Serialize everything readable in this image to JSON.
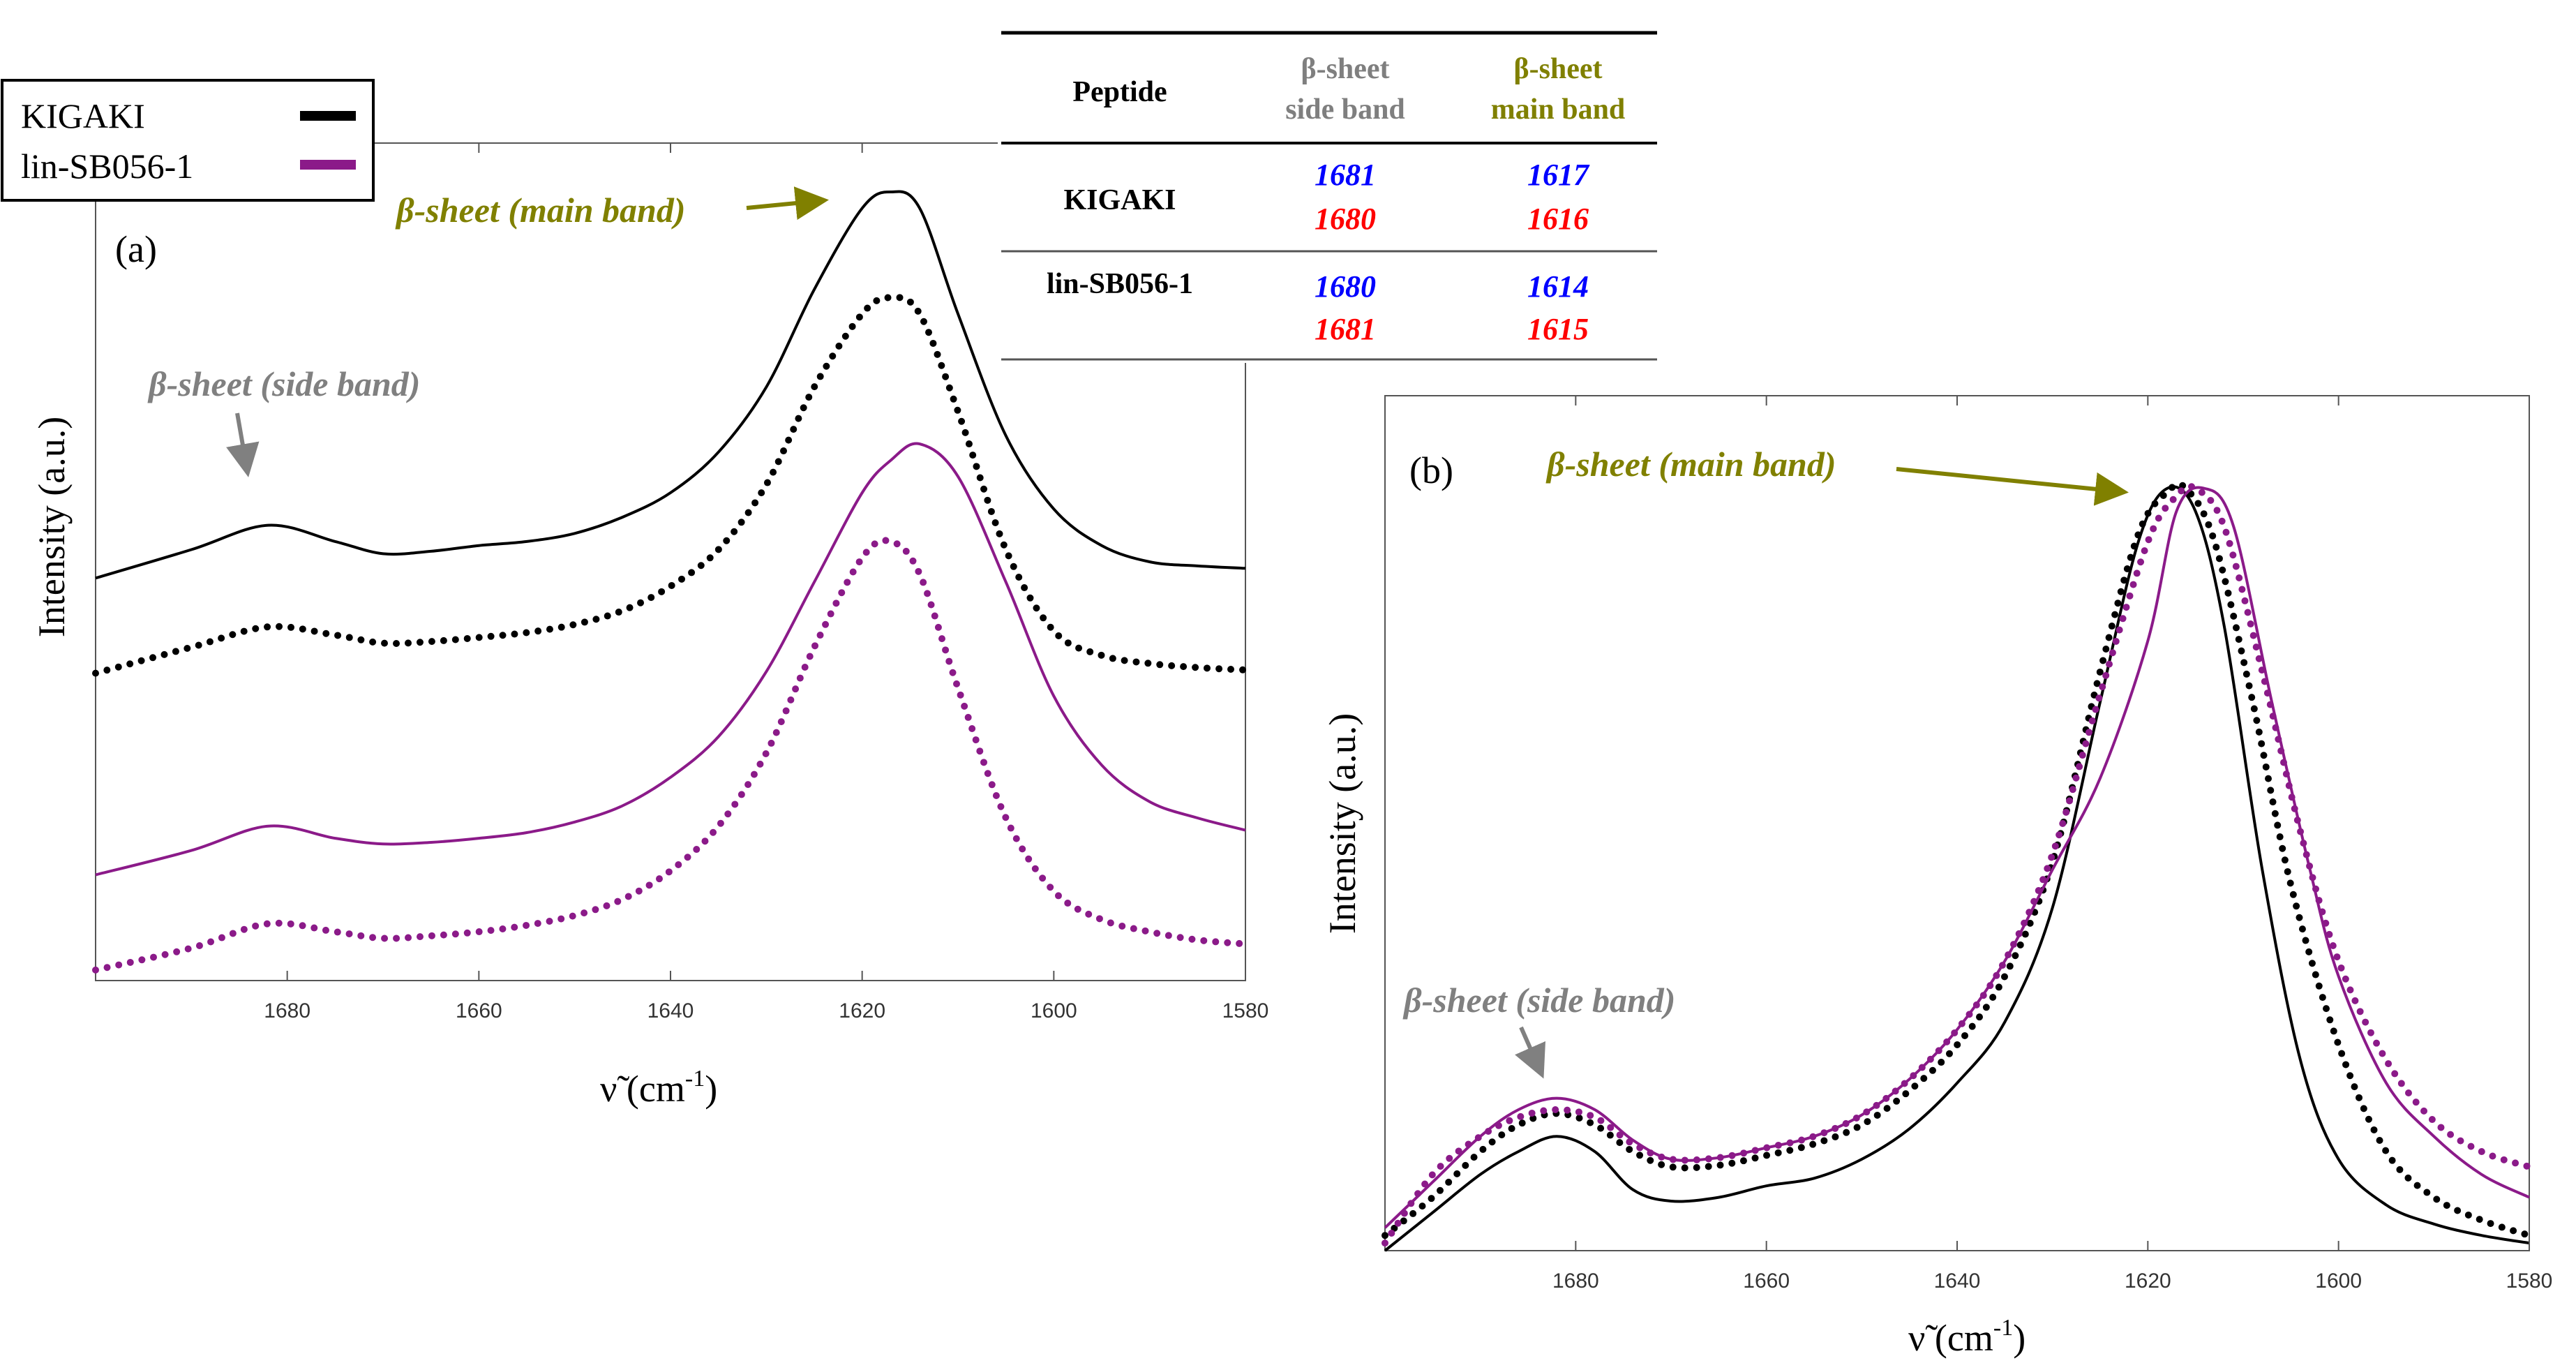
{
  "legend": {
    "items": [
      {
        "label": "KIGAKI",
        "color": "#000000"
      },
      {
        "label": "lin-SB056-1",
        "color": "#8B1A89"
      }
    ]
  },
  "table": {
    "headers": {
      "peptide": "Peptide",
      "side_line1": "β-sheet",
      "side_line2": "side band",
      "main_line1": "β-sheet",
      "main_line2": "main band"
    },
    "header_colors": {
      "side": "#7f7f7f",
      "main": "#808000"
    },
    "rows": [
      {
        "peptide": "KIGAKI",
        "side_blue": "1681",
        "side_red": "1680",
        "main_blue": "1617",
        "main_red": "1616"
      },
      {
        "peptide": "lin-SB056-1",
        "side_blue": "1680",
        "side_red": "1681",
        "main_blue": "1614",
        "main_red": "1615"
      }
    ],
    "value_colors": {
      "blue": "#0000ff",
      "red": "#ff0000"
    }
  },
  "colors": {
    "kigaki": "#000000",
    "lin": "#8B1A89",
    "olive": "#808000",
    "gray": "#808080"
  },
  "chart_data": [
    {
      "type": "line",
      "panel_label": "(a)",
      "title": "",
      "xlabel": "ν̃ (cm",
      "xlabel_sup": "-1",
      "xlabel_close": ")",
      "ylabel": "Intensity (a.u.)",
      "xlim": [
        1700,
        1580
      ],
      "ylim": [
        0,
        1
      ],
      "x_ticks": [
        "1680",
        "1660",
        "1640",
        "1620",
        "1600",
        "1580"
      ],
      "y_ticks_shown": false,
      "series_note": "vertically offset spectra, arbitrary units",
      "series": [
        {
          "name": "KIGAKI",
          "style": "solid",
          "color": "#000000",
          "x": [
            1700,
            1690,
            1682,
            1675,
            1670,
            1665,
            1660,
            1655,
            1650,
            1645,
            1640,
            1635,
            1630,
            1625,
            1620,
            1617,
            1614,
            1610,
            1605,
            1600,
            1595,
            1590,
            1585,
            1580
          ],
          "y": [
            0.495,
            0.53,
            0.56,
            0.54,
            0.525,
            0.528,
            0.535,
            0.54,
            0.55,
            0.57,
            0.6,
            0.65,
            0.73,
            0.85,
            0.95,
            0.97,
            0.95,
            0.82,
            0.67,
            0.58,
            0.535,
            0.515,
            0.51,
            0.507
          ]
        },
        {
          "name": "KIGAKI",
          "style": "dotted",
          "color": "#000000",
          "x": [
            1700,
            1690,
            1682,
            1675,
            1670,
            1665,
            1660,
            1655,
            1650,
            1645,
            1640,
            1635,
            1630,
            1625,
            1620,
            1617,
            1614,
            1610,
            1605,
            1600,
            1595,
            1590,
            1585,
            1580
          ],
          "y": [
            0.378,
            0.41,
            0.435,
            0.425,
            0.415,
            0.417,
            0.422,
            0.428,
            0.438,
            0.455,
            0.485,
            0.53,
            0.61,
            0.73,
            0.82,
            0.84,
            0.82,
            0.7,
            0.53,
            0.43,
            0.4,
            0.39,
            0.385,
            0.382
          ]
        },
        {
          "name": "lin-SB056-1",
          "style": "solid",
          "color": "#8B1A89",
          "x": [
            1700,
            1690,
            1682,
            1675,
            1670,
            1665,
            1660,
            1655,
            1650,
            1645,
            1640,
            1635,
            1630,
            1625,
            1620,
            1617,
            1614,
            1610,
            1605,
            1600,
            1595,
            1590,
            1585,
            1580
          ],
          "y": [
            0.13,
            0.16,
            0.19,
            0.175,
            0.168,
            0.17,
            0.175,
            0.182,
            0.195,
            0.215,
            0.25,
            0.3,
            0.38,
            0.49,
            0.6,
            0.64,
            0.66,
            0.62,
            0.49,
            0.35,
            0.265,
            0.22,
            0.2,
            0.185
          ]
        },
        {
          "name": "lin-SB056-1",
          "style": "dotted",
          "color": "#8B1A89",
          "x": [
            1700,
            1690,
            1682,
            1675,
            1670,
            1665,
            1660,
            1655,
            1650,
            1645,
            1640,
            1635,
            1630,
            1625,
            1620,
            1617,
            1614,
            1610,
            1605,
            1600,
            1595,
            1590,
            1585,
            1580
          ],
          "y": [
            0.013,
            0.04,
            0.07,
            0.06,
            0.052,
            0.055,
            0.06,
            0.068,
            0.08,
            0.1,
            0.135,
            0.19,
            0.28,
            0.41,
            0.52,
            0.54,
            0.5,
            0.36,
            0.2,
            0.11,
            0.075,
            0.06,
            0.05,
            0.045
          ]
        }
      ],
      "annotations": [
        {
          "text": "β-sheet (main band)",
          "color": "#808000"
        },
        {
          "text": "β-sheet (side band)",
          "color": "#808080"
        }
      ]
    },
    {
      "type": "line",
      "panel_label": "(b)",
      "title": "",
      "xlabel": "ν̃ (cm",
      "xlabel_sup": "-1",
      "xlabel_close": ")",
      "ylabel": "Intensity (a.u.)",
      "xlim": [
        1700,
        1580
      ],
      "ylim": [
        0,
        1
      ],
      "x_ticks": [
        "1680",
        "1660",
        "1640",
        "1620",
        "1600",
        "1580"
      ],
      "y_ticks_shown": false,
      "series_note": "normalized spectra",
      "series": [
        {
          "name": "KIGAKI",
          "style": "solid",
          "color": "#000000",
          "x": [
            1700,
            1695,
            1690,
            1686,
            1682,
            1678,
            1674,
            1670,
            1665,
            1660,
            1655,
            1650,
            1645,
            1640,
            1635,
            1630,
            1625,
            1621,
            1618,
            1615,
            1612,
            1608,
            1604,
            1600,
            1595,
            1590,
            1585,
            1580
          ],
          "y": [
            0.0,
            0.05,
            0.1,
            0.13,
            0.15,
            0.13,
            0.08,
            0.065,
            0.07,
            0.085,
            0.095,
            0.12,
            0.16,
            0.22,
            0.3,
            0.45,
            0.72,
            0.93,
            1.0,
            0.97,
            0.82,
            0.5,
            0.25,
            0.12,
            0.06,
            0.035,
            0.02,
            0.01
          ]
        },
        {
          "name": "KIGAKI",
          "style": "dotted",
          "color": "#000000",
          "x": [
            1700,
            1695,
            1690,
            1686,
            1682,
            1678,
            1674,
            1670,
            1665,
            1660,
            1655,
            1650,
            1645,
            1640,
            1635,
            1630,
            1625,
            1621,
            1618,
            1616,
            1613,
            1609,
            1605,
            1600,
            1595,
            1590,
            1585,
            1580
          ],
          "y": [
            0.02,
            0.07,
            0.13,
            0.165,
            0.18,
            0.165,
            0.13,
            0.11,
            0.112,
            0.125,
            0.14,
            0.165,
            0.21,
            0.27,
            0.36,
            0.51,
            0.76,
            0.94,
            0.995,
            1.0,
            0.93,
            0.72,
            0.48,
            0.27,
            0.13,
            0.07,
            0.04,
            0.02
          ]
        },
        {
          "name": "lin-SB056-1",
          "style": "solid",
          "color": "#8B1A89",
          "x": [
            1700,
            1695,
            1690,
            1686,
            1682,
            1678,
            1674,
            1670,
            1665,
            1660,
            1655,
            1650,
            1645,
            1640,
            1635,
            1630,
            1625,
            1620,
            1617,
            1614,
            1611,
            1607,
            1603,
            1600,
            1595,
            1590,
            1585,
            1580
          ],
          "y": [
            0.03,
            0.09,
            0.15,
            0.185,
            0.2,
            0.185,
            0.145,
            0.12,
            0.122,
            0.135,
            0.15,
            0.178,
            0.225,
            0.29,
            0.38,
            0.5,
            0.62,
            0.8,
            0.97,
            1.0,
            0.95,
            0.72,
            0.5,
            0.36,
            0.22,
            0.15,
            0.1,
            0.07
          ]
        },
        {
          "name": "lin-SB056-1",
          "style": "dotted",
          "color": "#8B1A89",
          "x": [
            1700,
            1695,
            1690,
            1686,
            1682,
            1678,
            1674,
            1670,
            1665,
            1660,
            1655,
            1650,
            1645,
            1640,
            1635,
            1630,
            1625,
            1620,
            1617,
            1615,
            1612,
            1608,
            1604,
            1600,
            1595,
            1590,
            1585,
            1580
          ],
          "y": [
            0.01,
            0.1,
            0.15,
            0.175,
            0.185,
            0.175,
            0.14,
            0.12,
            0.122,
            0.135,
            0.15,
            0.178,
            0.225,
            0.29,
            0.38,
            0.52,
            0.73,
            0.93,
            0.99,
            1.0,
            0.95,
            0.76,
            0.55,
            0.38,
            0.25,
            0.17,
            0.13,
            0.11
          ]
        }
      ],
      "annotations": [
        {
          "text": "β-sheet (main band)",
          "color": "#808000"
        },
        {
          "text": "β-sheet (side band)",
          "color": "#808080"
        }
      ]
    }
  ]
}
